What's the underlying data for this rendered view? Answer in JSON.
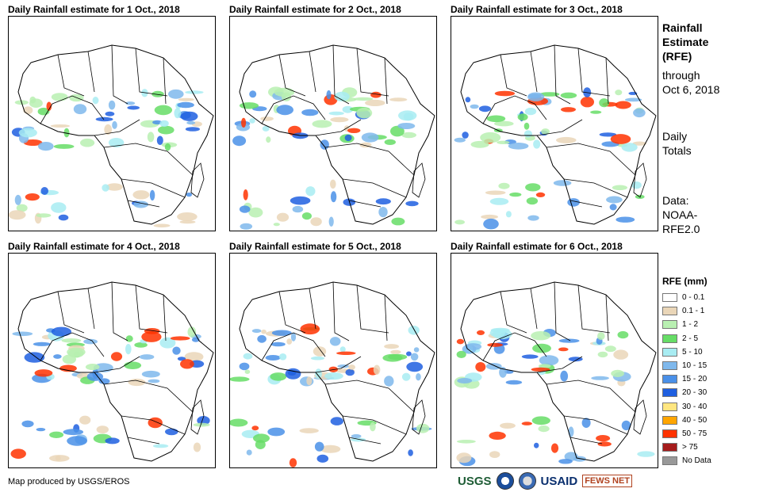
{
  "panels": [
    {
      "title": "Daily Rainfall estimate for 1 Oct., 2018"
    },
    {
      "title": "Daily Rainfall estimate for 2 Oct., 2018"
    },
    {
      "title": "Daily Rainfall estimate for 3 Oct., 2018"
    },
    {
      "title": "Daily Rainfall estimate for 4 Oct., 2018"
    },
    {
      "title": "Daily Rainfall estimate for 5 Oct., 2018"
    },
    {
      "title": "Daily Rainfall estimate for 6 Oct., 2018"
    }
  ],
  "side": {
    "title_line1": "Rainfall",
    "title_line2": "Estimate",
    "title_line3": "(RFE)",
    "through_line1": "through",
    "through_line2": "Oct 6, 2018",
    "daily_line1": "Daily",
    "daily_line2": "Totals",
    "data_line1": "Data:",
    "data_line2": "NOAA-",
    "data_line3": "RFE2.0"
  },
  "legend": {
    "title": "RFE (mm)",
    "items": [
      {
        "label": "0 - 0.1",
        "color": "#ffffff"
      },
      {
        "label": "0.1 - 1",
        "color": "#ead6b8"
      },
      {
        "label": "1 - 2",
        "color": "#b9f0b2"
      },
      {
        "label": "2 - 5",
        "color": "#66dd66"
      },
      {
        "label": "5 - 10",
        "color": "#a8ecf2"
      },
      {
        "label": "10 - 15",
        "color": "#7fb8ec"
      },
      {
        "label": "15 - 20",
        "color": "#4a90e8"
      },
      {
        "label": "20 - 30",
        "color": "#1f5fe0"
      },
      {
        "label": "30 - 40",
        "color": "#ffe680"
      },
      {
        "label": "40 - 50",
        "color": "#ffa500"
      },
      {
        "label": "50 - 75",
        "color": "#ff3300"
      },
      {
        "label": "> 75",
        "color": "#a51c1c"
      },
      {
        "label": "No Data",
        "color": "#999999"
      }
    ]
  },
  "footer": {
    "credit": "Map produced by USGS/EROS"
  },
  "logos": {
    "usgs": "USGS",
    "usaid": "USAID",
    "fews": "FEWS NET"
  }
}
